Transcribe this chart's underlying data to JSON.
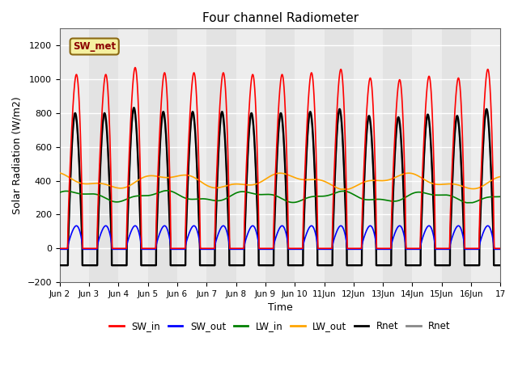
{
  "title": "Four channel Radiometer",
  "xlabel": "Time",
  "ylabel": "Solar Radiation (W/m2)",
  "ylim": [
    -200,
    1300
  ],
  "yticks": [
    -200,
    0,
    200,
    400,
    600,
    800,
    1000,
    1200
  ],
  "n_days": 15,
  "start_day": 2,
  "end_day": 17,
  "xtick_labels": [
    "Jun 2",
    "Jun 3",
    "Jun 4",
    "Jun 5",
    "Jun 6",
    "Jun 7",
    "Jun 8",
    "Jun 9",
    "Jun 10",
    "11Jun",
    "12Jun",
    "13Jun",
    "14Jun",
    "15Jun",
    "16Jun",
    "17"
  ],
  "annotation_text": "SW_met",
  "annotation_bg": "#f5f0a0",
  "annotation_border": "#8b6914",
  "plot_bg": "#e8e8e8",
  "grid_color": "white",
  "line_width": 1.2,
  "SW_in_color": "red",
  "SW_out_color": "blue",
  "LW_in_color": "green",
  "LW_out_color": "orange",
  "Rnet_color": "black",
  "Rnet2_color": "#888888"
}
